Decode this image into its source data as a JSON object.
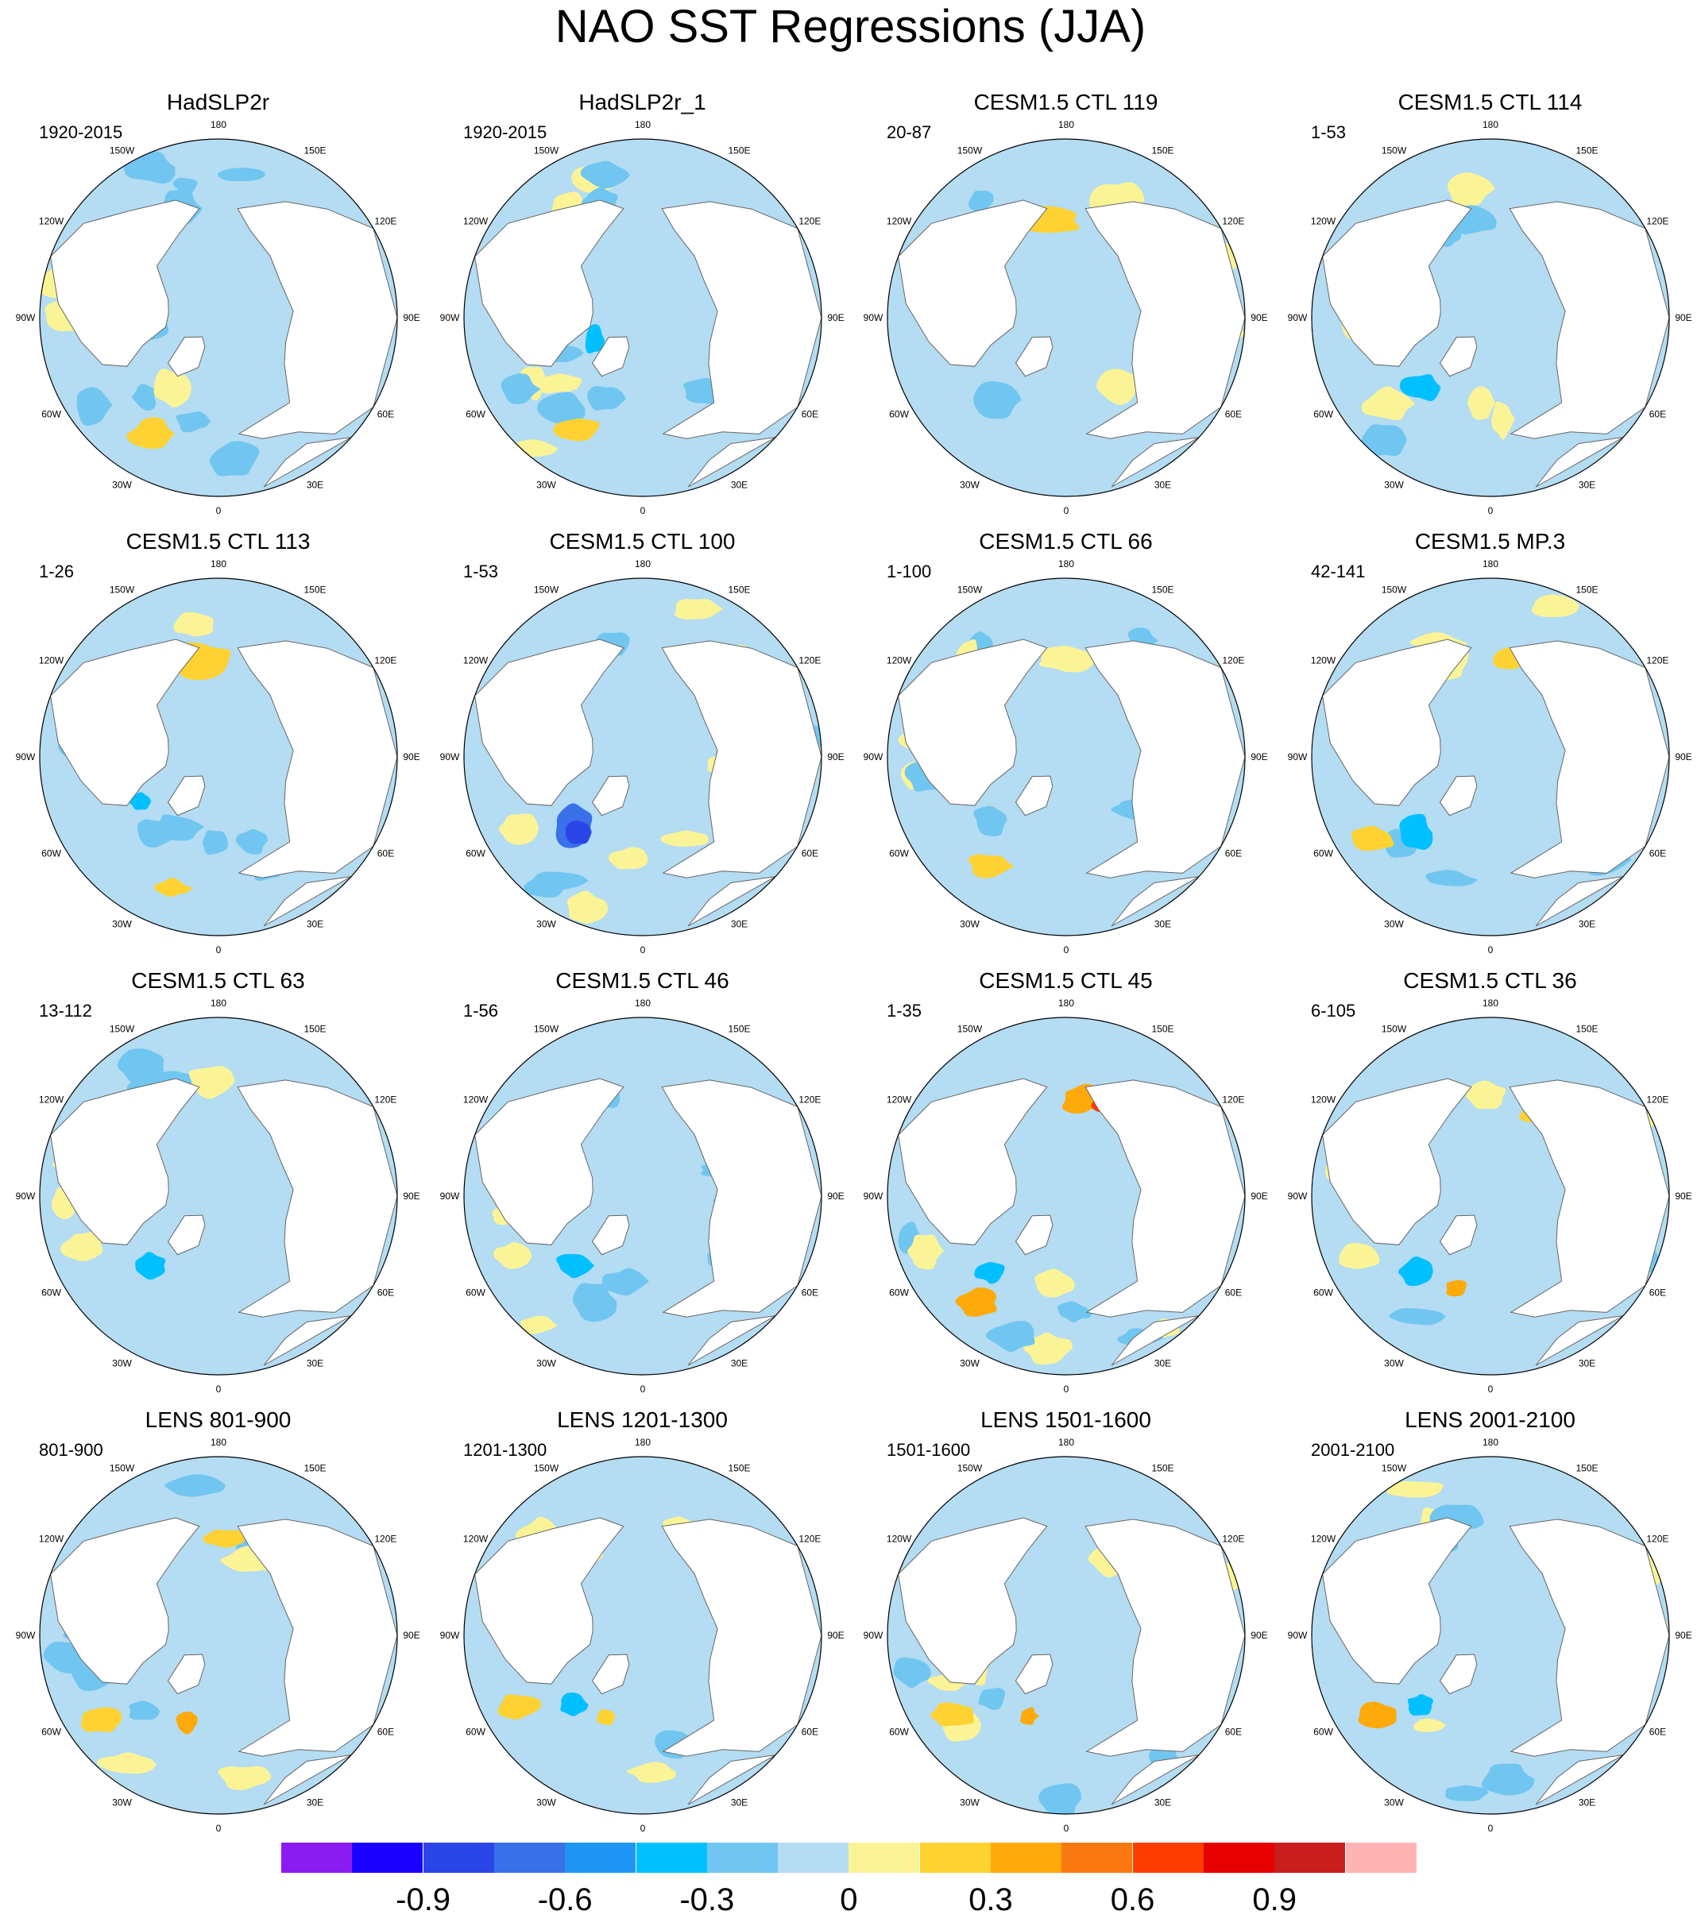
{
  "title": "NAO SST Regressions (JJA)",
  "longitude_labels": [
    "180",
    "150E",
    "120E",
    "90E",
    "60E",
    "30E",
    "0",
    "30W",
    "60W",
    "90W",
    "120W",
    "150W"
  ],
  "panels": [
    {
      "title": "HadSLP2r",
      "period": "1920-2015"
    },
    {
      "title": "HadSLP2r_1",
      "period": "1920-2015"
    },
    {
      "title": "CESM1.5 CTL 119",
      "period": "20-87"
    },
    {
      "title": "CESM1.5 CTL 114",
      "period": "1-53"
    },
    {
      "title": "CESM1.5 CTL 113",
      "period": "1-26"
    },
    {
      "title": "CESM1.5 CTL 100",
      "period": "1-53"
    },
    {
      "title": "CESM1.5 CTL 66",
      "period": "1-100"
    },
    {
      "title": "CESM1.5 MP.3",
      "period": "42-141"
    },
    {
      "title": "CESM1.5 CTL 63",
      "period": "13-112"
    },
    {
      "title": "CESM1.5 CTL 46",
      "period": "1-56"
    },
    {
      "title": "CESM1.5 CTL 45",
      "period": "1-35"
    },
    {
      "title": "CESM1.5 CTL 36",
      "period": "6-105"
    },
    {
      "title": "LENS 801-900",
      "period": "801-900"
    },
    {
      "title": "LENS 1201-1300",
      "period": "1201-1300"
    },
    {
      "title": "LENS 1501-1600",
      "period": "1501-1600"
    },
    {
      "title": "LENS 2001-2100",
      "period": "2001-2100"
    }
  ],
  "colorbar": {
    "colors": [
      "#8a1cf0",
      "#1a00ff",
      "#2a45e8",
      "#3a70e8",
      "#1e96f5",
      "#00c0ff",
      "#70c6f0",
      "#b4dcf2",
      "#fbf496",
      "#fdd232",
      "#fdaa0a",
      "#fa7810",
      "#ff3c00",
      "#e60000",
      "#c81e1e",
      "#ffb4b4"
    ],
    "tick_labels": [
      "-0.9",
      "-0.6",
      "-0.3",
      "0",
      "0.3",
      "0.6",
      "0.9"
    ],
    "tick_values": [
      -0.9,
      -0.6,
      -0.3,
      0,
      0.3,
      0.6,
      0.9
    ],
    "levels": [
      -1.05,
      -0.9,
      -0.75,
      -0.6,
      -0.45,
      -0.3,
      -0.15,
      0,
      0.15,
      0.3,
      0.45,
      0.6,
      0.75,
      0.9,
      1.05
    ]
  }
}
